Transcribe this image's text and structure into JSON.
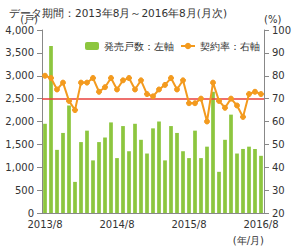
{
  "chart_data": {
    "type": "bar",
    "title": "データ期間：2013年8月～2016年8月(月次)",
    "categories": [
      "2013/8",
      null,
      null,
      null,
      null,
      null,
      null,
      null,
      null,
      null,
      null,
      null,
      "2014/8",
      null,
      null,
      null,
      null,
      null,
      null,
      null,
      null,
      null,
      null,
      null,
      "2015/8",
      null,
      null,
      null,
      null,
      null,
      null,
      null,
      null,
      null,
      null,
      null,
      "2016/8"
    ],
    "x_label": "(年/月)",
    "y_label": "(戸)",
    "y2_label": "(%)",
    "series": [
      {
        "name": "発売戸数：左軸",
        "type": "bar",
        "color": "#8dc63f",
        "values": [
          1950,
          3650,
          1380,
          1750,
          2350,
          680,
          1550,
          1800,
          1150,
          1550,
          1650,
          1980,
          1200,
          1900,
          1350,
          1950,
          1600,
          1300,
          1850,
          2000,
          1150,
          1900,
          1750,
          1350,
          1200,
          1800,
          1200,
          1450,
          2650,
          900,
          1600,
          2150,
          1300,
          1400,
          1450,
          1400,
          1250
        ]
      },
      {
        "name": "契約率：右軸",
        "type": "line",
        "axis": "y2",
        "color": "#f39a1e",
        "marker": "circle",
        "values": [
          80,
          79,
          74,
          77,
          69,
          65,
          77,
          77,
          79,
          73,
          75,
          79,
          74,
          78,
          79,
          74,
          78,
          72,
          71,
          74,
          76,
          79,
          74,
          78,
          68,
          68,
          70,
          60,
          77,
          69,
          66,
          70,
          67,
          62,
          72,
          73,
          72
        ]
      }
    ],
    "reference_line": {
      "value": 70,
      "axis": "y2",
      "color": "#e8413c"
    },
    "ylim": [
      0,
      4000
    ],
    "yticks": [
      0,
      500,
      {
        "value": 1000,
        "label": "1,000"
      },
      {
        "value": 1500,
        "label": "1,500"
      },
      {
        "value": 2000,
        "label": "2,000"
      },
      {
        "value": 2500,
        "label": "2,500"
      },
      {
        "value": 3000,
        "label": "3,000"
      },
      {
        "value": 3500,
        "label": "3,500"
      },
      {
        "value": 4000,
        "label": "4,000"
      }
    ],
    "y2lim": [
      20,
      100
    ],
    "y2ticks": [
      20,
      30,
      40,
      50,
      60,
      70,
      80,
      90,
      100
    ],
    "grid": false,
    "legend": "top-left"
  }
}
